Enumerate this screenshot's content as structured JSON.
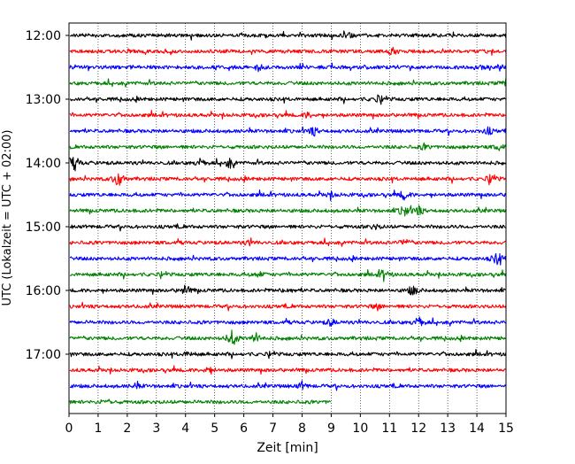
{
  "chart_data": {
    "type": "line",
    "title": "",
    "xlabel": "Zeit  [min]",
    "ylabel": "UTC (Lokalzeit = UTC + 02:00)",
    "xlim": [
      0,
      15
    ],
    "x_ticks": [
      "0",
      "1",
      "2",
      "3",
      "4",
      "5",
      "6",
      "7",
      "8",
      "9",
      "10",
      "11",
      "12",
      "13",
      "14",
      "15"
    ],
    "y_ticks": [
      "12:00",
      "13:00",
      "14:00",
      "15:00",
      "16:00",
      "17:00"
    ],
    "grid": "vertical dotted at each minute",
    "colors": [
      "#000000",
      "#ff0000",
      "#0000ff",
      "#008000"
    ],
    "series": [
      {
        "label": "12:00",
        "color": "#000000",
        "duration_min": 15,
        "events": [
          [
            9.6,
            0.35
          ]
        ]
      },
      {
        "label": "12:15",
        "color": "#ff0000",
        "duration_min": 15,
        "events": [
          [
            11.1,
            0.3
          ]
        ]
      },
      {
        "label": "12:30",
        "color": "#0000ff",
        "duration_min": 15,
        "events": [
          [
            6.5,
            0.4
          ],
          [
            14.1,
            0.3
          ]
        ]
      },
      {
        "label": "12:45",
        "color": "#008000",
        "duration_min": 15,
        "events": [
          [
            15.0,
            0.4
          ]
        ]
      },
      {
        "label": "13:00",
        "color": "#000000",
        "duration_min": 15,
        "events": [
          [
            10.6,
            0.3
          ]
        ]
      },
      {
        "label": "13:15",
        "color": "#ff0000",
        "duration_min": 15,
        "events": [
          [
            8.2,
            0.3
          ]
        ]
      },
      {
        "label": "13:30",
        "color": "#0000ff",
        "duration_min": 15,
        "events": [
          [
            8.4,
            0.5
          ],
          [
            14.4,
            0.4
          ]
        ]
      },
      {
        "label": "13:45",
        "color": "#008000",
        "duration_min": 15,
        "events": [
          [
            14.8,
            0.4
          ],
          [
            12.2,
            0.3
          ]
        ]
      },
      {
        "label": "14:00",
        "color": "#000000",
        "duration_min": 15,
        "events": [
          [
            0.2,
            0.8
          ],
          [
            5.5,
            0.6
          ],
          [
            4.5,
            0.4
          ]
        ]
      },
      {
        "label": "14:15",
        "color": "#ff0000",
        "duration_min": 15,
        "events": [
          [
            1.7,
            1.0
          ],
          [
            14.5,
            0.4
          ]
        ]
      },
      {
        "label": "14:30",
        "color": "#0000ff",
        "duration_min": 15,
        "events": [
          [
            11.5,
            0.5
          ],
          [
            9.0,
            0.3
          ]
        ]
      },
      {
        "label": "14:45",
        "color": "#008000",
        "duration_min": 15,
        "events": [
          [
            11.5,
            0.7
          ],
          [
            12.0,
            0.5
          ]
        ]
      },
      {
        "label": "15:00",
        "color": "#000000",
        "duration_min": 15,
        "events": [
          [
            10.5,
            0.3
          ]
        ]
      },
      {
        "label": "15:15",
        "color": "#ff0000",
        "duration_min": 15,
        "events": [
          [
            11.5,
            0.4
          ],
          [
            6.2,
            0.3
          ]
        ]
      },
      {
        "label": "15:30",
        "color": "#0000ff",
        "duration_min": 15,
        "events": [
          [
            14.7,
            0.8
          ]
        ]
      },
      {
        "label": "15:45",
        "color": "#008000",
        "duration_min": 15,
        "events": [
          [
            10.8,
            0.6
          ],
          [
            6.5,
            0.3
          ]
        ]
      },
      {
        "label": "16:00",
        "color": "#000000",
        "duration_min": 15,
        "events": [
          [
            4.0,
            0.6
          ],
          [
            11.8,
            0.6
          ],
          [
            7.5,
            0.3
          ]
        ]
      },
      {
        "label": "16:15",
        "color": "#ff0000",
        "duration_min": 15,
        "events": [
          [
            10.6,
            0.3
          ]
        ]
      },
      {
        "label": "16:30",
        "color": "#0000ff",
        "duration_min": 15,
        "events": [
          [
            12.0,
            0.6
          ],
          [
            9.0,
            0.4
          ]
        ]
      },
      {
        "label": "16:45",
        "color": "#008000",
        "duration_min": 15,
        "events": [
          [
            5.6,
            1.0
          ],
          [
            6.4,
            0.6
          ]
        ]
      },
      {
        "label": "17:00",
        "color": "#000000",
        "duration_min": 15,
        "events": [
          [
            4.1,
            0.3
          ]
        ]
      },
      {
        "label": "17:15",
        "color": "#ff0000",
        "duration_min": 15,
        "events": [
          [
            4.8,
            0.4
          ]
        ]
      },
      {
        "label": "17:30",
        "color": "#0000ff",
        "duration_min": 15,
        "events": [
          [
            8.0,
            0.4
          ],
          [
            2.3,
            0.3
          ]
        ]
      },
      {
        "label": "17:45",
        "color": "#008000",
        "duration_min": 9.0,
        "events": [
          [
            1.3,
            0.3
          ]
        ]
      }
    ]
  }
}
